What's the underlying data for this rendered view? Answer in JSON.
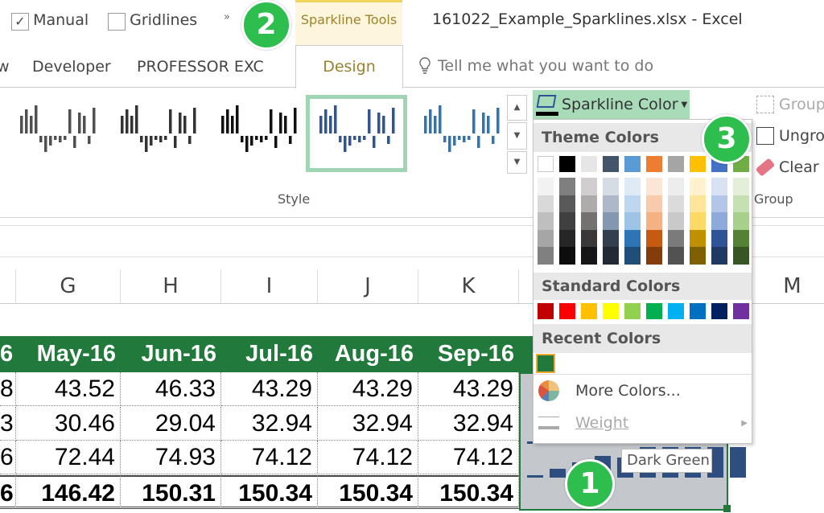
{
  "top_bar": {
    "manual_label": "Manual",
    "manual_checked": true,
    "gridlines_label": "Gridlines",
    "gridlines_checked": false,
    "overflow_icon": "»",
    "context_tab": "Sparkline Tools",
    "window_title": "161022_Example_Sparklines.xlsx - Excel"
  },
  "tabs": [
    {
      "label": "w"
    },
    {
      "label": "Developer"
    },
    {
      "label": "PROFESSOR EXC"
    },
    {
      "label": "Design",
      "active": true
    }
  ],
  "tell_me": {
    "placeholder": "Tell me what you want to do",
    "icon": "lightbulb-icon"
  },
  "ribbon": {
    "style_label": "Style",
    "group_label": "Group",
    "group_items": [
      {
        "label": "Group",
        "icon": "group-icon",
        "disabled": true
      },
      {
        "label": "Ungro",
        "icon": "ungroup-icon"
      },
      {
        "label": "Clear",
        "icon": "eraser-icon"
      }
    ],
    "style_colors": [
      "#505050",
      "#333333",
      "#111111",
      "#2e5597",
      "#2f75b5"
    ],
    "selected_style": 3,
    "selected_border": "#9fd4b4"
  },
  "columns": [
    "G",
    "H",
    "I",
    "J",
    "K",
    "M"
  ],
  "table": {
    "header_partial": "6",
    "headers": [
      "May-16",
      "Jun-16",
      "Jul-16",
      "Aug-16",
      "Sep-16"
    ],
    "rows": [
      {
        "partial": "8",
        "values": [
          "43.52",
          "46.33",
          "43.29",
          "43.29",
          "43.29"
        ]
      },
      {
        "partial": "3",
        "values": [
          "30.46",
          "29.04",
          "32.94",
          "32.94",
          "32.94"
        ]
      },
      {
        "partial": "6",
        "values": [
          "72.44",
          "74.93",
          "74.12",
          "74.12",
          "74.12"
        ]
      },
      {
        "partial": "6",
        "values": [
          "146.42",
          "150.31",
          "150.34",
          "150.34",
          "150.34"
        ],
        "bold": true
      }
    ],
    "header_bg": "#217a3c"
  },
  "sparkline_levels": [
    [
      0.05,
      0.05,
      0.3,
      0.5,
      0.8,
      1,
      0.9,
      0.9,
      0.9,
      0.9
    ],
    [
      0.05,
      0.3,
      0.5,
      0.7,
      0.65,
      1,
      1,
      1,
      1,
      1
    ]
  ],
  "sparkline_color": "#2d4e7e",
  "menu": {
    "button_label": "Sparkline Color",
    "theme_header": "Theme Colors",
    "standard_header": "Standard Colors",
    "recent_header": "Recent Colors",
    "more_colors": "More Colors...",
    "weight": "Weight",
    "tooltip": "Dark Green",
    "theme_colors": [
      "#ffffff",
      "#000000",
      "#e7e6e6",
      "#44546a",
      "#5b9bd5",
      "#ed7d31",
      "#a5a5a5",
      "#ffc000",
      "#4472c4",
      "#70ad47"
    ],
    "theme_shades": [
      [
        "#f2f2f2",
        "#d9d9d9",
        "#bfbfbf",
        "#a6a6a6",
        "#808080"
      ],
      [
        "#7f7f7f",
        "#595959",
        "#404040",
        "#262626",
        "#0d0d0d"
      ],
      [
        "#d0cece",
        "#aeabab",
        "#757171",
        "#3a3838",
        "#171616"
      ],
      [
        "#d6dce4",
        "#adb9ca",
        "#8497b0",
        "#333f4f",
        "#222a35"
      ],
      [
        "#deebf6",
        "#bdd7ee",
        "#9dc3e6",
        "#2e75b5",
        "#1f4e79"
      ],
      [
        "#fbe5d5",
        "#f7cbac",
        "#f4b183",
        "#c55a11",
        "#843c0b"
      ],
      [
        "#ededed",
        "#dbdbdb",
        "#c9c9c9",
        "#7b7b7b",
        "#525252"
      ],
      [
        "#fff2cc",
        "#fee599",
        "#ffd965",
        "#bf9000",
        "#7f6000"
      ],
      [
        "#d9e2f3",
        "#b4c6e7",
        "#8eaadb",
        "#2f5496",
        "#1f3864"
      ],
      [
        "#e2efd9",
        "#c5e0b3",
        "#a8d08d",
        "#538135",
        "#375623"
      ]
    ],
    "standard_colors": [
      "#c00000",
      "#ff0000",
      "#ffc000",
      "#ffff00",
      "#92d050",
      "#00b050",
      "#00b0f0",
      "#0070c0",
      "#002060",
      "#7030a0"
    ],
    "recent_colors": [
      "#217a3c"
    ]
  },
  "badges": [
    "1",
    "2",
    "3"
  ]
}
